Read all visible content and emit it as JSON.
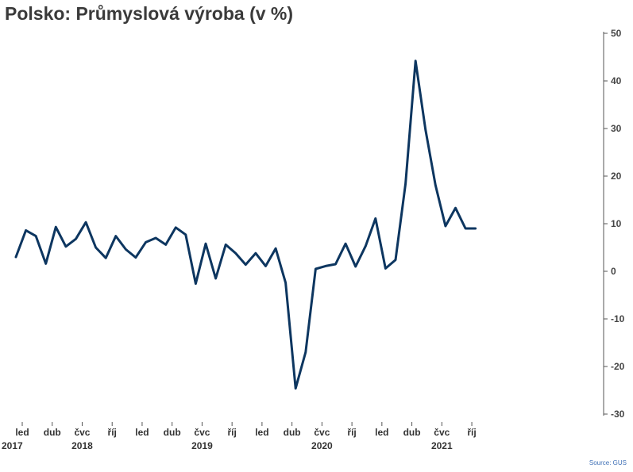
{
  "title": "Polsko: Průmyslová výroba (v %)",
  "source": "Source: GUS",
  "colors": {
    "line": "#0d3660",
    "axis": "#555555",
    "text": "#3a3a3a",
    "source": "#3d6fb6"
  },
  "chart_data": {
    "type": "line",
    "title": "Polsko: Průmyslová výroba (v %)",
    "ylim": [
      -30,
      50
    ],
    "y_ticks": [
      50,
      40,
      30,
      20,
      10,
      0,
      -10,
      -20,
      -30
    ],
    "y_tick_labels": [
      "50",
      "40",
      "30",
      "20",
      "10",
      "0",
      "-10",
      "-20",
      "-30"
    ],
    "y_axis_position": "right",
    "grid": false,
    "x_start": "2017-01",
    "x_end": "2021-10",
    "x_tick_labels": [
      {
        "date": "2017-01",
        "label": "led"
      },
      {
        "date": "2017-04",
        "label": "dub"
      },
      {
        "date": "2017-07",
        "label": "čvc"
      },
      {
        "date": "2017-10",
        "label": "říj"
      },
      {
        "date": "2018-01",
        "label": "led"
      },
      {
        "date": "2018-04",
        "label": "dub"
      },
      {
        "date": "2018-07",
        "label": "čvc"
      },
      {
        "date": "2018-10",
        "label": "říj"
      },
      {
        "date": "2019-01",
        "label": "led"
      },
      {
        "date": "2019-04",
        "label": "dub"
      },
      {
        "date": "2019-07",
        "label": "čvc"
      },
      {
        "date": "2019-10",
        "label": "říj"
      },
      {
        "date": "2020-01",
        "label": "led"
      },
      {
        "date": "2020-04",
        "label": "dub"
      },
      {
        "date": "2020-07",
        "label": "čvc"
      },
      {
        "date": "2020-10",
        "label": "říj"
      }
    ],
    "year_labels": [
      {
        "date": "2017-01",
        "label": "2017"
      },
      {
        "date": "2017-07",
        "label": "2018"
      },
      {
        "date": "2018-07",
        "label": "2019"
      },
      {
        "date": "2019-07",
        "label": "2020"
      },
      {
        "date": "2020-07",
        "label": "2021"
      }
    ],
    "series": [
      {
        "name": "",
        "x": [
          "2017-01",
          "2017-02",
          "2017-03",
          "2017-04",
          "2017-05",
          "2017-06",
          "2017-07",
          "2017-08",
          "2017-09",
          "2017-10",
          "2017-11",
          "2017-12",
          "2018-01",
          "2018-02",
          "2018-03",
          "2018-04",
          "2018-05",
          "2018-06",
          "2018-07",
          "2018-08",
          "2018-09",
          "2018-10",
          "2018-11",
          "2018-12",
          "2019-01",
          "2019-02",
          "2019-03",
          "2019-04",
          "2019-05",
          "2019-06",
          "2019-07",
          "2019-08",
          "2019-09",
          "2019-10",
          "2019-11",
          "2019-12",
          "2020-01",
          "2020-02",
          "2020-03",
          "2020-04",
          "2020-05",
          "2020-06",
          "2020-07",
          "2020-08",
          "2020-09",
          "2020-10",
          "2020-11"
        ],
        "values": [
          3.0,
          8.6,
          7.4,
          1.6,
          9.3,
          5.2,
          6.8,
          10.3,
          5.0,
          2.8,
          7.4,
          4.6,
          2.9,
          6.1,
          7.0,
          5.6,
          9.2,
          7.7,
          -2.6,
          5.8,
          -1.5,
          5.6,
          3.8,
          1.4,
          3.8,
          1.1,
          4.8,
          -2.4,
          -24.6,
          -17.0,
          0.5,
          1.1,
          1.5,
          5.8,
          1.0,
          5.3,
          11.1,
          0.6,
          2.4,
          18.4,
          44.2,
          29.8,
          18.1,
          9.5,
          13.3,
          9.0,
          9.0
        ]
      }
    ]
  }
}
